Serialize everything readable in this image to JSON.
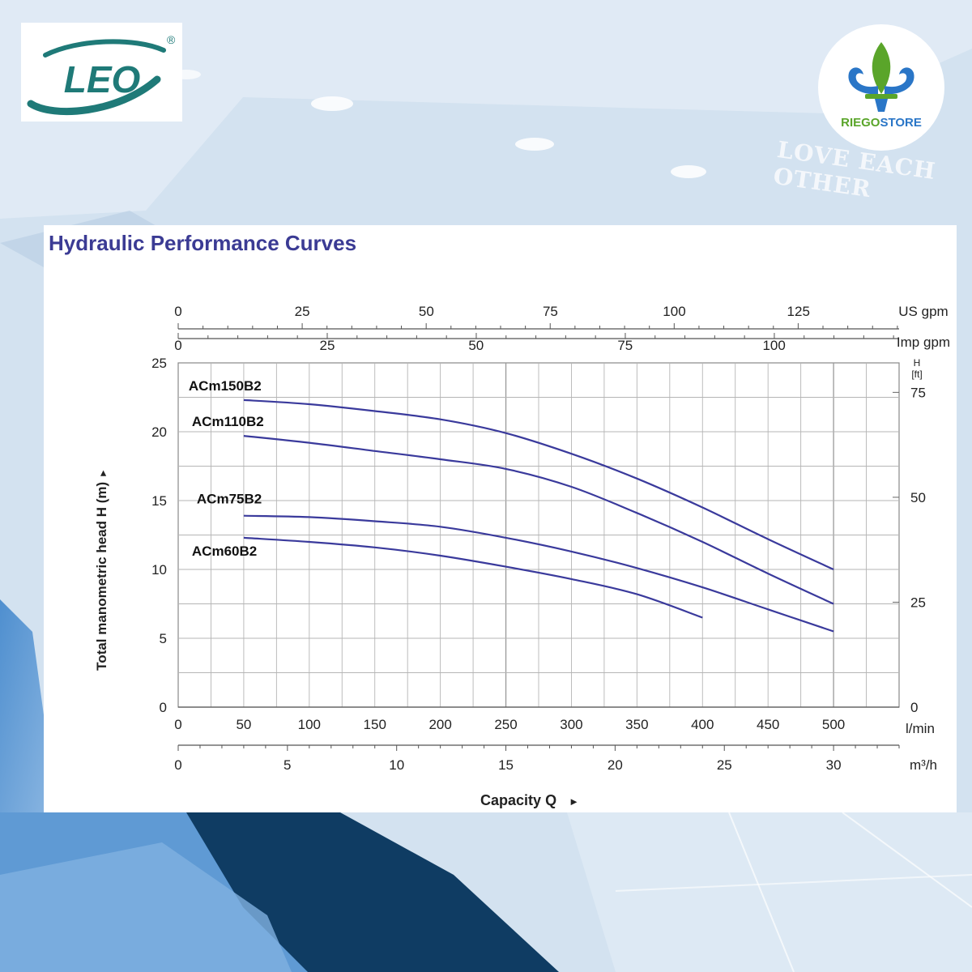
{
  "background": {
    "sign_text": "LOVE EACH OTHER"
  },
  "logos": {
    "leo": {
      "text": "LEO",
      "registered": "®",
      "color": "#1f7a78"
    },
    "riego": {
      "text_part1": "RIEGO",
      "text_part2": "STORE",
      "color_green": "#5aa52a",
      "color_blue": "#2a76c7"
    }
  },
  "colors": {
    "curve": "#3a3a9c",
    "title": "#3b3b94",
    "grid": "#b5b5b5"
  },
  "chart_data": {
    "type": "line",
    "title": "Hydraulic Performance Curves",
    "xlabel": "Capacity Q",
    "xlabel_arrow": "►",
    "ylabel": "Total manometric head H (m)",
    "ylabel_arrow": "►",
    "x_unit": "l/min",
    "xlim": [
      0,
      550
    ],
    "ylim": [
      0,
      25
    ],
    "x_ticks": [
      "0",
      "50",
      "100",
      "150",
      "200",
      "250",
      "300",
      "350",
      "400",
      "450",
      "500"
    ],
    "y_ticks": [
      "0",
      "5",
      "10",
      "15",
      "20",
      "25"
    ],
    "right_axis": {
      "unit_line1": "H",
      "unit_line2": "[ft]",
      "ticks": [
        {
          "label": "0",
          "value_m": 0
        },
        {
          "label": "25",
          "value_m": 7.62
        },
        {
          "label": "50",
          "value_m": 15.24
        },
        {
          "label": "75",
          "value_m": 22.86
        }
      ]
    },
    "us_gpm_axis": {
      "unit": "US gpm",
      "ticks": [
        {
          "label": "0",
          "lpm": 0
        },
        {
          "label": "25",
          "lpm": 94.6
        },
        {
          "label": "50",
          "lpm": 189.3
        },
        {
          "label": "75",
          "lpm": 283.9
        },
        {
          "label": "100",
          "lpm": 378.5
        },
        {
          "label": "125",
          "lpm": 473.2
        }
      ]
    },
    "imp_gpm_axis": {
      "unit": "Imp gpm",
      "ticks": [
        {
          "label": "0",
          "lpm": 0
        },
        {
          "label": "25",
          "lpm": 113.7
        },
        {
          "label": "50",
          "lpm": 227.3
        },
        {
          "label": "75",
          "lpm": 341.0
        },
        {
          "label": "100",
          "lpm": 454.6
        }
      ]
    },
    "m3h_axis": {
      "unit": "m³/h",
      "ticks": [
        {
          "label": "0",
          "lpm": 0
        },
        {
          "label": "5",
          "lpm": 83.3
        },
        {
          "label": "10",
          "lpm": 166.7
        },
        {
          "label": "15",
          "lpm": 250
        },
        {
          "label": "20",
          "lpm": 333.3
        },
        {
          "label": "25",
          "lpm": 416.7
        },
        {
          "label": "30",
          "lpm": 500
        }
      ]
    },
    "series": [
      {
        "name": "ACm150B2",
        "x": [
          50,
          100,
          150,
          200,
          250,
          300,
          350,
          400,
          450,
          500
        ],
        "values": [
          22.3,
          22.0,
          21.5,
          20.9,
          19.9,
          18.4,
          16.6,
          14.5,
          12.2,
          10.0
        ]
      },
      {
        "name": "ACm110B2",
        "x": [
          50,
          100,
          150,
          200,
          250,
          300,
          350,
          400,
          450,
          500
        ],
        "values": [
          19.7,
          19.2,
          18.6,
          18.0,
          17.3,
          16.0,
          14.1,
          12.0,
          9.7,
          7.5
        ]
      },
      {
        "name": "ACm75B2",
        "x": [
          50,
          100,
          150,
          200,
          250,
          300,
          350,
          400,
          450,
          500
        ],
        "values": [
          13.9,
          13.8,
          13.5,
          13.1,
          12.3,
          11.3,
          10.1,
          8.7,
          7.1,
          5.5
        ]
      },
      {
        "name": "ACm60B2",
        "x": [
          50,
          100,
          150,
          200,
          250,
          300,
          350,
          400
        ],
        "values": [
          12.3,
          12.0,
          11.6,
          11.0,
          10.2,
          9.3,
          8.2,
          6.5
        ]
      }
    ]
  }
}
